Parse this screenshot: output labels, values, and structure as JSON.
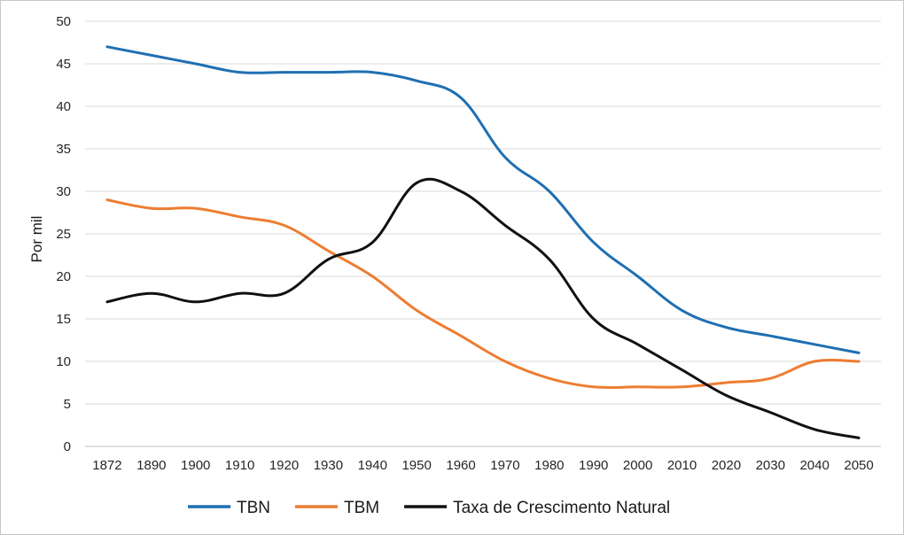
{
  "chart_data": {
    "type": "line",
    "title": "",
    "xlabel": "",
    "ylabel": "Por mil",
    "ylim": [
      0,
      50
    ],
    "yticks": [
      0,
      5,
      10,
      15,
      20,
      25,
      30,
      35,
      40,
      45,
      50
    ],
    "categories": [
      "1872",
      "1890",
      "1900",
      "1910",
      "1920",
      "1930",
      "1940",
      "1950",
      "1960",
      "1970",
      "1980",
      "1990",
      "2000",
      "2010",
      "2020",
      "2030",
      "2040",
      "2050"
    ],
    "grid": true,
    "legend_position": "bottom",
    "series": [
      {
        "name": "TBN",
        "color": "#1f6fb2",
        "values": [
          47,
          46,
          45,
          44,
          44,
          44,
          44,
          43,
          41,
          34,
          30,
          24,
          20,
          16,
          14,
          13,
          12,
          11
        ]
      },
      {
        "name": "TBM",
        "color": "#ed7d31",
        "values": [
          29,
          28,
          28,
          27,
          26,
          23,
          20,
          16,
          13,
          10,
          8,
          7,
          7,
          7,
          7.5,
          8,
          10,
          10
        ]
      },
      {
        "name": "Taxa de Crescimento Natural",
        "color": "#111111",
        "values": [
          17,
          18,
          17,
          18,
          18,
          22,
          24,
          31,
          30,
          26,
          22,
          15,
          12,
          9,
          6,
          4,
          2,
          1
        ]
      }
    ]
  }
}
